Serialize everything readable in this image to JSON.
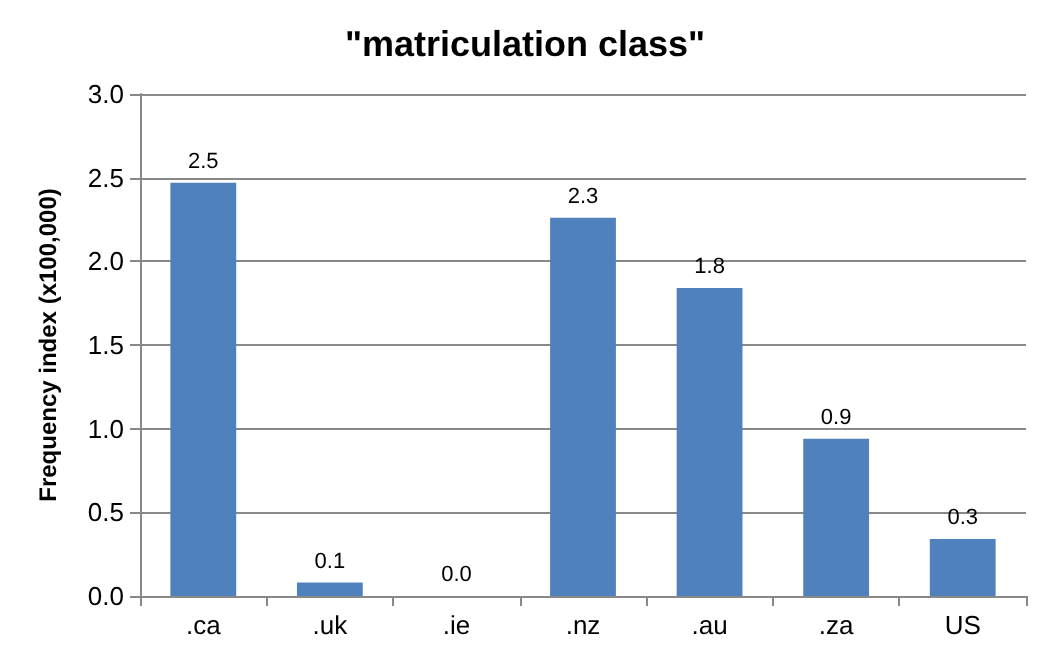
{
  "chart_data": {
    "type": "bar",
    "title": "\"matriculation class\"",
    "ylabel": "Frequency index (x100,000)",
    "categories": [
      ".ca",
      ".uk",
      ".ie",
      ".nz",
      ".au",
      ".za",
      "US"
    ],
    "values": [
      2.47,
      0.08,
      0.0,
      2.26,
      1.84,
      0.94,
      0.34
    ],
    "value_labels": [
      "2.5",
      "0.1",
      "0.0",
      "2.3",
      "1.8",
      "0.9",
      "0.3"
    ],
    "color": "#4f81bd",
    "ylim": [
      0,
      3
    ],
    "yticks": [
      {
        "value": 0,
        "label": "0.0"
      },
      {
        "value": 0.5,
        "label": "0.5"
      },
      {
        "value": 1,
        "label": "1.0"
      },
      {
        "value": 1.5,
        "label": "1.5"
      },
      {
        "value": 2,
        "label": "2.0"
      },
      {
        "value": 2.5,
        "label": "2.5"
      },
      {
        "value": 3,
        "label": "3.0"
      }
    ],
    "grid": true
  }
}
